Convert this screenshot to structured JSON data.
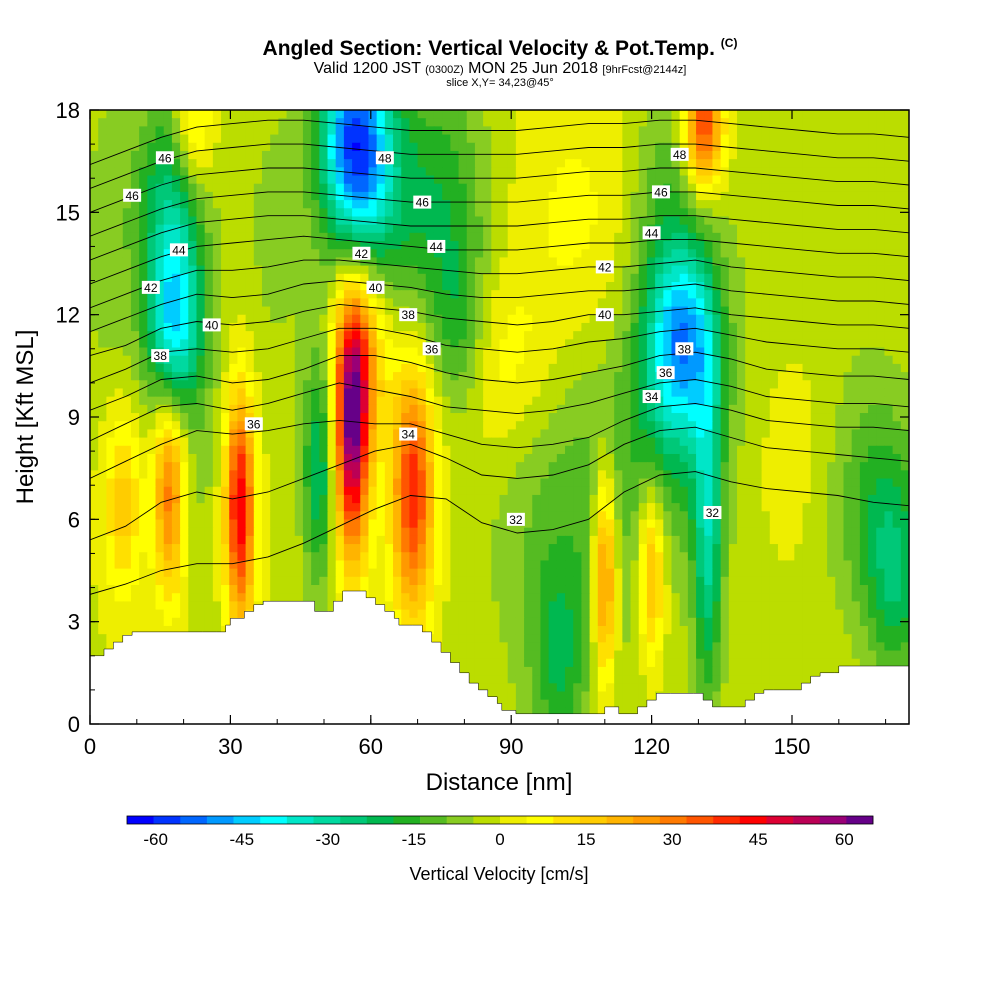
{
  "title": {
    "main": "Angled Section: Vertical Velocity & Pot.Temp.",
    "units_tag": "(C)",
    "valid_prefix": "Valid 1200 JST",
    "valid_z": "(0300Z)",
    "valid_date": "MON 25 Jun 2018",
    "forecast_tag": "[9hrFcst@2144z]",
    "slice": "slice X,Y= 34,23@45°"
  },
  "chart_data": {
    "type": "heatmap",
    "xlabel": "Distance [nm]",
    "ylabel": "Height [Kft MSL]",
    "xlim": [
      0,
      175
    ],
    "ylim": [
      0,
      18
    ],
    "x_ticks": [
      "0",
      "30",
      "60",
      "90",
      "120",
      "150"
    ],
    "y_ticks": [
      "0",
      "3",
      "6",
      "9",
      "12",
      "15",
      "18"
    ],
    "colorbar": {
      "label": "Vertical Velocity [cm/s]",
      "ticks": [
        "-60",
        "-45",
        "-30",
        "-15",
        "0",
        "15",
        "30",
        "45",
        "60"
      ],
      "min": -65,
      "max": 65,
      "step": 5,
      "colors": [
        "#0000ff",
        "#0033ff",
        "#0066ff",
        "#0099ff",
        "#00ccff",
        "#00ffff",
        "#00e6c8",
        "#00d9a0",
        "#00c878",
        "#00b850",
        "#22b022",
        "#55bb22",
        "#88cc22",
        "#bbdd00",
        "#eeee00",
        "#ffff00",
        "#ffe000",
        "#ffcc00",
        "#ffb400",
        "#ff9900",
        "#ff7a00",
        "#ff5500",
        "#ff2a00",
        "#ff0000",
        "#dd0033",
        "#bb0055",
        "#990077",
        "#660088"
      ]
    },
    "velocity_cells": [
      {
        "x": 18,
        "y": 11.8,
        "sx": 4,
        "sy": 1.8,
        "v": -38
      },
      {
        "x": 17,
        "y": 15.5,
        "sx": 5,
        "sy": 2.2,
        "v": -22
      },
      {
        "x": 20,
        "y": 9.5,
        "sx": 6,
        "sy": 4,
        "v": -8
      },
      {
        "x": 56,
        "y": 17.2,
        "sx": 5,
        "sy": 2.2,
        "v": -45
      },
      {
        "x": 60,
        "y": 16,
        "sx": 6,
        "sy": 2.5,
        "v": -25
      },
      {
        "x": 75,
        "y": 15,
        "sx": 7,
        "sy": 3,
        "v": -18
      },
      {
        "x": 79,
        "y": 11.5,
        "sx": 4,
        "sy": 1.8,
        "v": -12
      },
      {
        "x": 49,
        "y": 7.5,
        "sx": 2.5,
        "sy": 2.5,
        "v": -25
      },
      {
        "x": 127,
        "y": 11.2,
        "sx": 5,
        "sy": 1.8,
        "v": -35
      },
      {
        "x": 124,
        "y": 13.5,
        "sx": 6,
        "sy": 3.5,
        "v": -18
      },
      {
        "x": 132,
        "y": 5.5,
        "sx": 2.2,
        "sy": 3.5,
        "v": -28
      },
      {
        "x": 103,
        "y": 6,
        "sx": 12,
        "sy": 4,
        "v": -12
      },
      {
        "x": 100,
        "y": 1.8,
        "sx": 4,
        "sy": 2,
        "v": -15
      },
      {
        "x": 125,
        "y": 8.5,
        "sx": 9,
        "sy": 2.5,
        "v": -12
      },
      {
        "x": 168,
        "y": 6.5,
        "sx": 7,
        "sy": 2.5,
        "v": -15
      },
      {
        "x": 172,
        "y": 4,
        "sx": 4,
        "sy": 2,
        "v": -18
      },
      {
        "x": 40,
        "y": 14.5,
        "sx": 5,
        "sy": 3,
        "v": -6
      },
      {
        "x": 4,
        "y": 14,
        "sx": 5,
        "sy": 4,
        "v": -6
      },
      {
        "x": 150,
        "y": 11,
        "sx": 12,
        "sy": 5,
        "v": -5
      },
      {
        "x": 17,
        "y": 6.8,
        "sx": 2.5,
        "sy": 2.2,
        "v": 38
      },
      {
        "x": 32,
        "y": 6.3,
        "sx": 2.2,
        "sy": 2.4,
        "v": 52
      },
      {
        "x": 56,
        "y": 8.5,
        "sx": 2.6,
        "sy": 2.6,
        "v": 62
      },
      {
        "x": 58,
        "y": 11,
        "sx": 4,
        "sy": 2,
        "v": 25
      },
      {
        "x": 69,
        "y": 6.8,
        "sx": 3.2,
        "sy": 2.6,
        "v": 45
      },
      {
        "x": 110,
        "y": 4.3,
        "sx": 1.8,
        "sy": 2.2,
        "v": 38
      },
      {
        "x": 120,
        "y": 4.5,
        "sx": 2,
        "sy": 1.8,
        "v": 28
      },
      {
        "x": 131,
        "y": 17.5,
        "sx": 3,
        "sy": 1.3,
        "v": 45
      },
      {
        "x": 7,
        "y": 6.5,
        "sx": 3,
        "sy": 2,
        "v": 20
      },
      {
        "x": 88,
        "y": 10.5,
        "sx": 8,
        "sy": 2,
        "v": 10
      },
      {
        "x": 104,
        "y": 14.5,
        "sx": 10,
        "sy": 3,
        "v": 8
      },
      {
        "x": 150,
        "y": 8.5,
        "sx": 8,
        "sy": 3,
        "v": 8
      },
      {
        "x": 22,
        "y": 17.5,
        "sx": 3,
        "sy": 1.3,
        "v": 20
      }
    ],
    "theta_contours": [
      {
        "v": 32,
        "y": [
          3.8,
          4.1,
          4.5,
          4.7,
          4.7,
          4.9,
          5.3,
          5.8,
          6.3,
          6.7,
          6.6,
          5.9,
          5.6,
          5.7,
          6.0,
          6.8,
          7.3,
          7.4,
          7.1,
          6.9,
          6.8,
          6.7,
          6.5,
          6.4
        ]
      },
      {
        "v": 33,
        "y": [
          5.4,
          5.8,
          6.5,
          6.8,
          6.6,
          6.8,
          7.2,
          7.6,
          8.0,
          8.2,
          7.8,
          7.3,
          7.2,
          7.3,
          7.6,
          8.2,
          8.6,
          8.7,
          8.4,
          8.1,
          8.0,
          7.9,
          7.8,
          7.7
        ]
      },
      {
        "v": 34,
        "y": [
          7.2,
          7.7,
          8.2,
          8.6,
          8.5,
          8.6,
          8.8,
          8.9,
          8.8,
          8.8,
          8.5,
          8.2,
          8.1,
          8.2,
          8.4,
          8.9,
          9.3,
          9.4,
          9.2,
          8.9,
          8.8,
          8.7,
          8.7,
          8.6
        ]
      },
      {
        "v": 35,
        "y": [
          8.3,
          8.8,
          9.3,
          9.4,
          9.2,
          9.4,
          9.7,
          10.0,
          9.8,
          9.6,
          9.3,
          9.2,
          9.1,
          9.2,
          9.4,
          9.7,
          10.0,
          10.1,
          9.9,
          9.6,
          9.5,
          9.4,
          9.4,
          9.3
        ]
      },
      {
        "v": 36,
        "y": [
          9.2,
          9.6,
          10.1,
          10.2,
          10.0,
          10.1,
          10.4,
          10.8,
          10.8,
          10.6,
          10.3,
          10.1,
          10.0,
          10.1,
          10.3,
          10.5,
          10.8,
          10.9,
          10.7,
          10.4,
          10.3,
          10.2,
          10.2,
          10.1
        ]
      },
      {
        "v": 37,
        "y": [
          10.0,
          10.4,
          10.9,
          11.0,
          10.9,
          11.0,
          11.3,
          11.6,
          11.6,
          11.4,
          11.1,
          11.0,
          10.9,
          11.0,
          11.2,
          11.3,
          11.5,
          11.6,
          11.4,
          11.2,
          11.1,
          11.0,
          11.0,
          10.9
        ]
      },
      {
        "v": 38,
        "y": [
          10.8,
          11.1,
          11.6,
          11.8,
          11.7,
          11.8,
          12.1,
          12.3,
          12.2,
          12.1,
          11.9,
          11.8,
          11.7,
          11.8,
          12.0,
          12.0,
          12.1,
          12.2,
          12.0,
          11.9,
          11.8,
          11.7,
          11.7,
          11.6
        ]
      },
      {
        "v": 39,
        "y": [
          11.5,
          11.9,
          12.3,
          12.6,
          12.5,
          12.6,
          12.9,
          13.0,
          12.9,
          12.8,
          12.6,
          12.5,
          12.5,
          12.6,
          12.7,
          12.7,
          12.8,
          12.9,
          12.7,
          12.6,
          12.5,
          12.4,
          12.4,
          12.3
        ]
      },
      {
        "v": 40,
        "y": [
          12.2,
          12.6,
          13.0,
          13.3,
          13.3,
          13.4,
          13.6,
          13.6,
          13.5,
          13.4,
          13.3,
          13.2,
          13.2,
          13.3,
          13.4,
          13.4,
          13.5,
          13.6,
          13.4,
          13.3,
          13.2,
          13.1,
          13.1,
          13.0
        ]
      },
      {
        "v": 41,
        "y": [
          12.9,
          13.3,
          13.7,
          14.0,
          14.1,
          14.2,
          14.3,
          14.2,
          14.1,
          14.0,
          13.9,
          13.9,
          13.9,
          14.0,
          14.1,
          14.1,
          14.2,
          14.2,
          14.1,
          14.0,
          13.9,
          13.8,
          13.8,
          13.7
        ]
      },
      {
        "v": 42,
        "y": [
          13.6,
          14.0,
          14.4,
          14.7,
          14.8,
          14.9,
          14.9,
          14.8,
          14.7,
          14.6,
          14.6,
          14.6,
          14.6,
          14.7,
          14.8,
          14.8,
          14.9,
          14.9,
          14.8,
          14.7,
          14.6,
          14.5,
          14.5,
          14.4
        ]
      },
      {
        "v": 43,
        "y": [
          14.3,
          14.7,
          15.1,
          15.4,
          15.5,
          15.6,
          15.6,
          15.5,
          15.4,
          15.3,
          15.3,
          15.3,
          15.3,
          15.4,
          15.5,
          15.5,
          15.6,
          15.6,
          15.5,
          15.4,
          15.3,
          15.2,
          15.2,
          15.1
        ]
      },
      {
        "v": 44,
        "y": [
          15.0,
          15.4,
          15.8,
          16.1,
          16.2,
          16.3,
          16.3,
          16.2,
          16.1,
          16.0,
          16.0,
          16.0,
          16.0,
          16.1,
          16.2,
          16.2,
          16.3,
          16.3,
          16.2,
          16.1,
          16.0,
          15.9,
          15.9,
          15.8
        ]
      },
      {
        "v": 45,
        "y": [
          15.7,
          16.1,
          16.5,
          16.8,
          16.9,
          17.0,
          17.0,
          16.9,
          16.8,
          16.7,
          16.7,
          16.7,
          16.7,
          16.8,
          16.9,
          16.9,
          17.0,
          17.0,
          16.9,
          16.8,
          16.7,
          16.6,
          16.6,
          16.5
        ]
      },
      {
        "v": 46,
        "y": [
          16.4,
          16.8,
          17.2,
          17.5,
          17.6,
          17.7,
          17.7,
          17.6,
          17.5,
          17.4,
          17.4,
          17.4,
          17.4,
          17.5,
          17.6,
          17.6,
          17.7,
          17.7,
          17.6,
          17.5,
          17.4,
          17.3,
          17.3,
          17.2
        ]
      }
    ],
    "contour_labels": [
      {
        "text": "46",
        "x": 16,
        "y": 16.6
      },
      {
        "text": "46",
        "x": 9,
        "y": 15.5
      },
      {
        "text": "44",
        "x": 19,
        "y": 13.9
      },
      {
        "text": "42",
        "x": 13,
        "y": 12.8
      },
      {
        "text": "40",
        "x": 26,
        "y": 11.7
      },
      {
        "text": "38",
        "x": 15,
        "y": 10.8
      },
      {
        "text": "36",
        "x": 35,
        "y": 8.8
      },
      {
        "text": "48",
        "x": 63,
        "y": 16.6
      },
      {
        "text": "46",
        "x": 71,
        "y": 15.3
      },
      {
        "text": "44",
        "x": 74,
        "y": 14.0
      },
      {
        "text": "42",
        "x": 58,
        "y": 13.8
      },
      {
        "text": "40",
        "x": 61,
        "y": 12.8
      },
      {
        "text": "38",
        "x": 68,
        "y": 12.0
      },
      {
        "text": "36",
        "x": 73,
        "y": 11.0
      },
      {
        "text": "34",
        "x": 68,
        "y": 8.5
      },
      {
        "text": "32",
        "x": 91,
        "y": 6.0
      },
      {
        "text": "42",
        "x": 110,
        "y": 13.4
      },
      {
        "text": "40",
        "x": 110,
        "y": 12.0
      },
      {
        "text": "48",
        "x": 126,
        "y": 16.7
      },
      {
        "text": "46",
        "x": 122,
        "y": 15.6
      },
      {
        "text": "44",
        "x": 120,
        "y": 14.4
      },
      {
        "text": "38",
        "x": 127,
        "y": 11.0
      },
      {
        "text": "36",
        "x": 123,
        "y": 10.3
      },
      {
        "text": "34",
        "x": 120,
        "y": 9.6
      },
      {
        "text": "32",
        "x": 133,
        "y": 6.2
      }
    ],
    "terrain": [
      [
        0,
        2
      ],
      [
        1,
        2
      ],
      [
        3,
        2.2
      ],
      [
        5,
        2.4
      ],
      [
        7,
        2.6
      ],
      [
        9,
        2.7
      ],
      [
        11,
        2.7
      ],
      [
        24,
        2.7
      ],
      [
        27,
        2.7
      ],
      [
        29,
        2.9
      ],
      [
        30,
        3.1
      ],
      [
        33,
        3.3
      ],
      [
        35,
        3.5
      ],
      [
        37,
        3.6
      ],
      [
        47,
        3.6
      ],
      [
        48,
        3.3
      ],
      [
        51,
        3.3
      ],
      [
        52,
        3.6
      ],
      [
        54,
        3.9
      ],
      [
        58,
        3.9
      ],
      [
        59,
        3.7
      ],
      [
        61,
        3.5
      ],
      [
        63,
        3.3
      ],
      [
        65,
        3.1
      ],
      [
        66,
        2.9
      ],
      [
        69,
        2.9
      ],
      [
        71,
        2.7
      ],
      [
        73,
        2.4
      ],
      [
        75,
        2.1
      ],
      [
        77,
        1.8
      ],
      [
        79,
        1.5
      ],
      [
        81,
        1.2
      ],
      [
        83,
        1.0
      ],
      [
        85,
        0.8
      ],
      [
        87,
        0.6
      ],
      [
        88,
        0.4
      ],
      [
        91,
        0.3
      ],
      [
        109,
        0.3
      ],
      [
        110,
        0.5
      ],
      [
        113,
        0.3
      ],
      [
        117,
        0.5
      ],
      [
        119,
        0.7
      ],
      [
        121,
        0.9
      ],
      [
        124,
        0.9
      ],
      [
        128,
        0.9
      ],
      [
        129,
        0.9
      ],
      [
        131,
        0.7
      ],
      [
        133,
        0.5
      ],
      [
        136,
        0.5
      ],
      [
        140,
        0.7
      ],
      [
        142,
        0.9
      ],
      [
        144,
        1.0
      ],
      [
        146,
        1.0
      ],
      [
        152,
        1.2
      ],
      [
        154,
        1.4
      ],
      [
        156,
        1.5
      ],
      [
        159,
        1.5
      ],
      [
        160,
        1.7
      ],
      [
        175,
        1.7
      ]
    ]
  }
}
